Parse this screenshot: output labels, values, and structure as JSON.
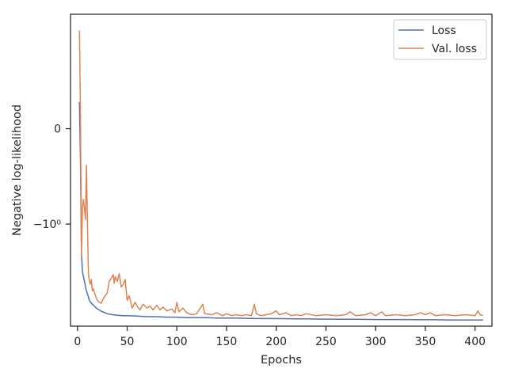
{
  "chart_data": {
    "type": "line",
    "title": "",
    "xlabel": "Epochs",
    "ylabel": "Negative log-likelihood",
    "xlim": [
      -7,
      417
    ],
    "x_ticks": [
      0,
      50,
      100,
      150,
      200,
      250,
      300,
      350,
      400
    ],
    "y_scale": "symlog (linthresh 1)",
    "ylim_plot_units": [
      -2.07,
      1.2
    ],
    "y_ticks": [
      {
        "value": 0,
        "label": "0"
      },
      {
        "value": -1,
        "label": "−10⁰"
      }
    ],
    "grid": false,
    "legend": {
      "placement": "top-right",
      "entries": [
        "Loss",
        "Val. loss"
      ]
    },
    "series": [
      {
        "name": "Loss",
        "color": "#4c72b0",
        "points": [
          [
            2,
            0.28
          ],
          [
            3,
            -0.3
          ],
          [
            4,
            -1.3
          ],
          [
            5,
            -1.5
          ],
          [
            6,
            -1.55
          ],
          [
            7,
            -1.6
          ],
          [
            8,
            -1.65
          ],
          [
            9,
            -1.7
          ],
          [
            10,
            -1.73
          ],
          [
            12,
            -1.8
          ],
          [
            14,
            -1.83
          ],
          [
            16,
            -1.85
          ],
          [
            18,
            -1.87
          ],
          [
            20,
            -1.89
          ],
          [
            22,
            -1.9
          ],
          [
            25,
            -1.92
          ],
          [
            28,
            -1.93
          ],
          [
            30,
            -1.94
          ],
          [
            35,
            -1.95
          ],
          [
            40,
            -1.955
          ],
          [
            45,
            -1.96
          ],
          [
            50,
            -1.96
          ],
          [
            60,
            -1.965
          ],
          [
            70,
            -1.97
          ],
          [
            80,
            -1.97
          ],
          [
            90,
            -1.975
          ],
          [
            100,
            -1.975
          ],
          [
            110,
            -1.98
          ],
          [
            120,
            -1.98
          ],
          [
            130,
            -1.98
          ],
          [
            140,
            -1.985
          ],
          [
            150,
            -1.985
          ],
          [
            160,
            -1.985
          ],
          [
            170,
            -1.988
          ],
          [
            180,
            -1.99
          ],
          [
            190,
            -1.99
          ],
          [
            200,
            -1.99
          ],
          [
            220,
            -1.993
          ],
          [
            240,
            -1.995
          ],
          [
            260,
            -1.997
          ],
          [
            280,
            -1.998
          ],
          [
            300,
            -2.0
          ],
          [
            320,
            -2.0
          ],
          [
            340,
            -2.002
          ],
          [
            360,
            -2.003
          ],
          [
            380,
            -2.005
          ],
          [
            400,
            -2.005
          ],
          [
            408,
            -2.005
          ]
        ]
      },
      {
        "name": "Val. loss",
        "color": "#dd8452",
        "points": [
          [
            2,
            1.03
          ],
          [
            3,
            0.2
          ],
          [
            4,
            -1.35
          ],
          [
            5,
            -0.82
          ],
          [
            6,
            -0.74
          ],
          [
            7,
            -0.84
          ],
          [
            8,
            -0.95
          ],
          [
            9,
            -0.38
          ],
          [
            10,
            -0.97
          ],
          [
            11,
            -1.52
          ],
          [
            12,
            -1.6
          ],
          [
            13,
            -1.63
          ],
          [
            14,
            -1.58
          ],
          [
            15,
            -1.7
          ],
          [
            16,
            -1.68
          ],
          [
            18,
            -1.75
          ],
          [
            20,
            -1.8
          ],
          [
            22,
            -1.82
          ],
          [
            24,
            -1.83
          ],
          [
            26,
            -1.78
          ],
          [
            28,
            -1.75
          ],
          [
            30,
            -1.72
          ],
          [
            32,
            -1.6
          ],
          [
            34,
            -1.57
          ],
          [
            36,
            -1.53
          ],
          [
            37,
            -1.62
          ],
          [
            38,
            -1.55
          ],
          [
            40,
            -1.6
          ],
          [
            42,
            -1.52
          ],
          [
            44,
            -1.66
          ],
          [
            46,
            -1.63
          ],
          [
            48,
            -1.58
          ],
          [
            50,
            -1.8
          ],
          [
            52,
            -1.75
          ],
          [
            55,
            -1.88
          ],
          [
            58,
            -1.82
          ],
          [
            60,
            -1.86
          ],
          [
            63,
            -1.9
          ],
          [
            66,
            -1.84
          ],
          [
            70,
            -1.88
          ],
          [
            73,
            -1.86
          ],
          [
            76,
            -1.9
          ],
          [
            80,
            -1.85
          ],
          [
            83,
            -1.9
          ],
          [
            86,
            -1.87
          ],
          [
            90,
            -1.91
          ],
          [
            95,
            -1.89
          ],
          [
            98,
            -1.93
          ],
          [
            100,
            -1.82
          ],
          [
            102,
            -1.92
          ],
          [
            106,
            -1.88
          ],
          [
            110,
            -1.93
          ],
          [
            115,
            -1.95
          ],
          [
            120,
            -1.94
          ],
          [
            126,
            -1.84
          ],
          [
            128,
            -1.94
          ],
          [
            135,
            -1.95
          ],
          [
            140,
            -1.93
          ],
          [
            146,
            -1.96
          ],
          [
            150,
            -1.94
          ],
          [
            155,
            -1.96
          ],
          [
            160,
            -1.95
          ],
          [
            165,
            -1.96
          ],
          [
            170,
            -1.95
          ],
          [
            175,
            -1.96
          ],
          [
            178,
            -1.84
          ],
          [
            180,
            -1.94
          ],
          [
            185,
            -1.96
          ],
          [
            190,
            -1.95
          ],
          [
            195,
            -1.94
          ],
          [
            200,
            -1.91
          ],
          [
            203,
            -1.95
          ],
          [
            210,
            -1.93
          ],
          [
            215,
            -1.96
          ],
          [
            220,
            -1.95
          ],
          [
            225,
            -1.96
          ],
          [
            230,
            -1.94
          ],
          [
            240,
            -1.96
          ],
          [
            250,
            -1.95
          ],
          [
            260,
            -1.96
          ],
          [
            270,
            -1.95
          ],
          [
            274,
            -1.92
          ],
          [
            280,
            -1.96
          ],
          [
            290,
            -1.95
          ],
          [
            295,
            -1.93
          ],
          [
            300,
            -1.96
          ],
          [
            306,
            -1.92
          ],
          [
            310,
            -1.96
          ],
          [
            320,
            -1.95
          ],
          [
            330,
            -1.96
          ],
          [
            340,
            -1.95
          ],
          [
            345,
            -1.93
          ],
          [
            350,
            -1.95
          ],
          [
            355,
            -1.93
          ],
          [
            360,
            -1.96
          ],
          [
            370,
            -1.95
          ],
          [
            380,
            -1.96
          ],
          [
            390,
            -1.95
          ],
          [
            400,
            -1.96
          ],
          [
            403,
            -1.91
          ],
          [
            405,
            -1.95
          ],
          [
            408,
            -1.96
          ]
        ]
      }
    ]
  }
}
